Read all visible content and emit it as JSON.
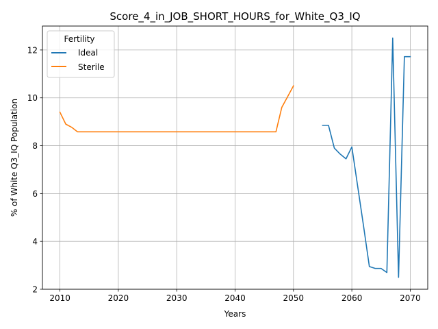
{
  "chart_data": {
    "type": "line",
    "title": "Score_4_in_JOB_SHORT_HOURS_for_White_Q3_IQ",
    "xlabel": "Years",
    "ylabel": "% of White Q3_IQ Population",
    "xlim": [
      2007,
      2073
    ],
    "ylim": [
      2,
      13
    ],
    "xticks": [
      2010,
      2020,
      2030,
      2040,
      2050,
      2060,
      2070
    ],
    "yticks": [
      2,
      4,
      6,
      8,
      10,
      12
    ],
    "grid": true,
    "legend": {
      "title": "Fertility",
      "placement": "top-left"
    },
    "series": [
      {
        "name": "Ideal",
        "color": "#1f77b4",
        "x": [
          2055,
          2056,
          2057,
          2058,
          2059,
          2060,
          2061,
          2062,
          2063,
          2064,
          2065,
          2066,
          2067,
          2068,
          2069,
          2070
        ],
        "values": [
          8.85,
          8.85,
          7.9,
          7.65,
          7.45,
          7.95,
          6.3,
          4.65,
          2.95,
          2.87,
          2.87,
          2.7,
          12.5,
          2.5,
          11.72,
          11.72
        ]
      },
      {
        "name": "Sterile",
        "color": "#ff7f0e",
        "x": [
          2010,
          2011,
          2012,
          2013,
          2014,
          2015,
          2016,
          2017,
          2018,
          2019,
          2020,
          2021,
          2022,
          2023,
          2024,
          2025,
          2026,
          2027,
          2028,
          2029,
          2030,
          2031,
          2032,
          2033,
          2034,
          2035,
          2036,
          2037,
          2038,
          2039,
          2040,
          2041,
          2042,
          2043,
          2044,
          2045,
          2046,
          2047,
          2048,
          2049,
          2050
        ],
        "values": [
          9.4,
          8.9,
          8.77,
          8.58,
          8.58,
          8.58,
          8.58,
          8.58,
          8.58,
          8.58,
          8.58,
          8.58,
          8.58,
          8.58,
          8.58,
          8.58,
          8.58,
          8.58,
          8.58,
          8.58,
          8.58,
          8.58,
          8.58,
          8.58,
          8.58,
          8.58,
          8.58,
          8.58,
          8.58,
          8.58,
          8.58,
          8.58,
          8.58,
          8.58,
          8.58,
          8.58,
          8.58,
          8.58,
          9.6,
          10.05,
          10.5
        ]
      }
    ]
  }
}
